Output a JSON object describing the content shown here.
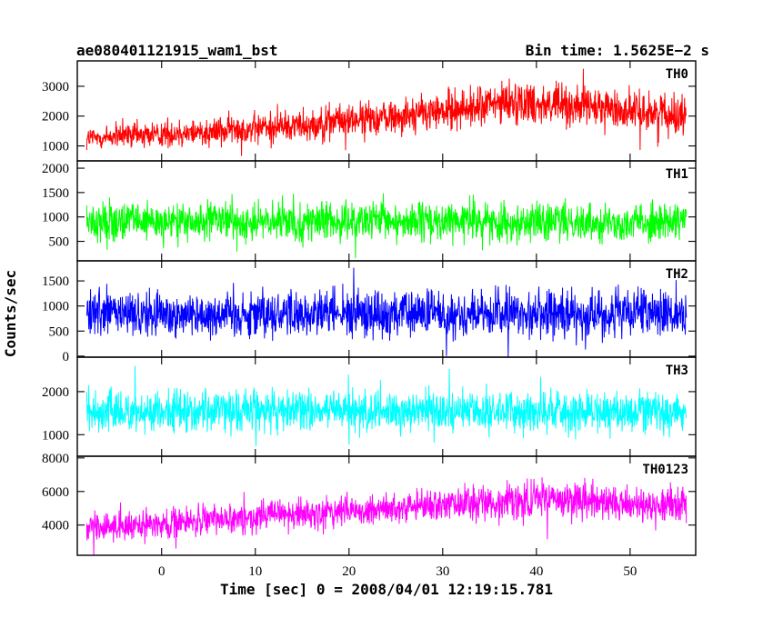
{
  "header": {
    "left_title": "ae080401121915_wam1_bst",
    "right_title": "Bin time: 1.5625E−2 s"
  },
  "chart_data": {
    "type": "line",
    "xlabel": "Time [sec] 0 = 2008/04/01 12:19:15.781",
    "ylabel": "Counts/sec",
    "xlim": [
      -9,
      57
    ],
    "x_ticks": [
      0,
      10,
      20,
      30,
      40,
      50
    ],
    "x_range_data": [
      -8,
      56
    ],
    "panels": [
      {
        "name": "TH0",
        "color": "#ff0000",
        "ylim": [
          500,
          3850
        ],
        "y_ticks": [
          1000,
          2000,
          3000
        ],
        "envelope": {
          "x": [
            -8,
            0,
            10,
            20,
            30,
            38,
            45,
            56
          ],
          "center": [
            1250,
            1400,
            1600,
            1850,
            2150,
            2500,
            2300,
            2050
          ],
          "amp": [
            500,
            550,
            600,
            650,
            750,
            850,
            800,
            750
          ]
        }
      },
      {
        "name": "TH1",
        "color": "#00ff00",
        "ylim": [
          100,
          2150
        ],
        "y_ticks": [
          500,
          1000,
          1500,
          2000
        ],
        "envelope": {
          "x": [
            -8,
            56
          ],
          "center": [
            900,
            900
          ],
          "amp": [
            450,
            450
          ]
        }
      },
      {
        "name": "TH2",
        "color": "#0000ff",
        "ylim": [
          -20,
          1900
        ],
        "y_ticks": [
          0,
          500,
          1000,
          1500
        ],
        "envelope": {
          "x": [
            -8,
            56
          ],
          "center": [
            850,
            850
          ],
          "amp": [
            550,
            550
          ]
        }
      },
      {
        "name": "TH3",
        "color": "#00ffff",
        "ylim": [
          500,
          2800
        ],
        "y_ticks": [
          1000,
          2000
        ],
        "envelope": {
          "x": [
            -8,
            56
          ],
          "center": [
            1550,
            1550
          ],
          "amp": [
            550,
            550
          ]
        }
      },
      {
        "name": "TH0123",
        "color": "#ff00ff",
        "ylim": [
          2200,
          8100
        ],
        "y_ticks": [
          4000,
          6000,
          8000
        ],
        "envelope": {
          "x": [
            -8,
            0,
            10,
            20,
            30,
            40,
            56
          ],
          "center": [
            3800,
            4100,
            4500,
            4800,
            5200,
            5500,
            5200
          ],
          "amp": [
            950,
            1000,
            1050,
            1100,
            1200,
            1300,
            1250
          ]
        }
      }
    ]
  }
}
